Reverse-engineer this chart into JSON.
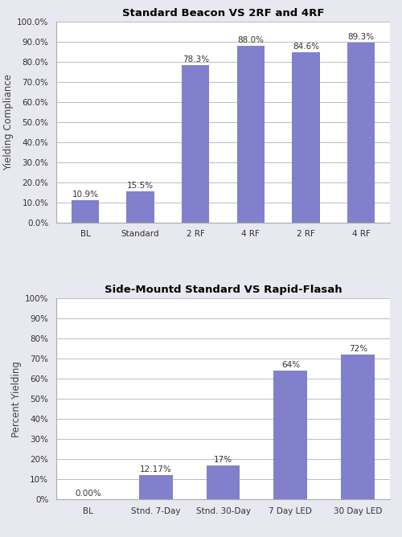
{
  "chart1": {
    "title": "Standard Beacon VS 2RF and 4RF",
    "categories": [
      "BL",
      "Standard",
      "2 RF",
      "4 RF",
      "2 RF",
      "4 RF"
    ],
    "values": [
      10.9,
      15.5,
      78.3,
      88.0,
      84.6,
      89.3
    ],
    "labels": [
      "10.9%",
      "15.5%",
      "78.3%",
      "88.0%",
      "84.6%",
      "89.3%"
    ],
    "ylabel": "Yielding Compliance",
    "ylim": [
      0,
      100
    ],
    "yticks": [
      0,
      10,
      20,
      30,
      40,
      50,
      60,
      70,
      80,
      90,
      100
    ],
    "ytick_labels": [
      "0.0%",
      "10.0%",
      "20.0%",
      "30.0%",
      "40.0%",
      "50.0%",
      "60.0%",
      "70.0%",
      "80.0%",
      "90.0%",
      "100.0%"
    ],
    "bar_color": "#8080cc"
  },
  "chart2": {
    "title": "Side-Mountd Standard VS Rapid-Flasah",
    "categories": [
      "BL",
      "Stnd. 7-Day",
      "Stnd. 30-Day",
      "7 Day LED",
      "30 Day LED"
    ],
    "values": [
      0.0,
      12.17,
      17.0,
      64.0,
      72.0
    ],
    "labels": [
      "0.00%",
      "12.17%",
      "17%",
      "64%",
      "72%"
    ],
    "ylabel": "Percent Yielding",
    "ylim": [
      0,
      100
    ],
    "yticks": [
      0,
      10,
      20,
      30,
      40,
      50,
      60,
      70,
      80,
      90,
      100
    ],
    "ytick_labels": [
      "0%",
      "10%",
      "20%",
      "30%",
      "40%",
      "50%",
      "60%",
      "70%",
      "80%",
      "90%",
      "100%"
    ],
    "bar_color": "#8080cc"
  },
  "fig_bg_color": "#e8e8f0",
  "plot_bg_color": "#ffffff",
  "grid_color": "#bbbbcc",
  "spine_color": "#aaaaaa",
  "label_fontsize": 7.5,
  "title_fontsize": 9.5,
  "tick_fontsize": 7.5,
  "ylabel_fontsize": 8.5
}
